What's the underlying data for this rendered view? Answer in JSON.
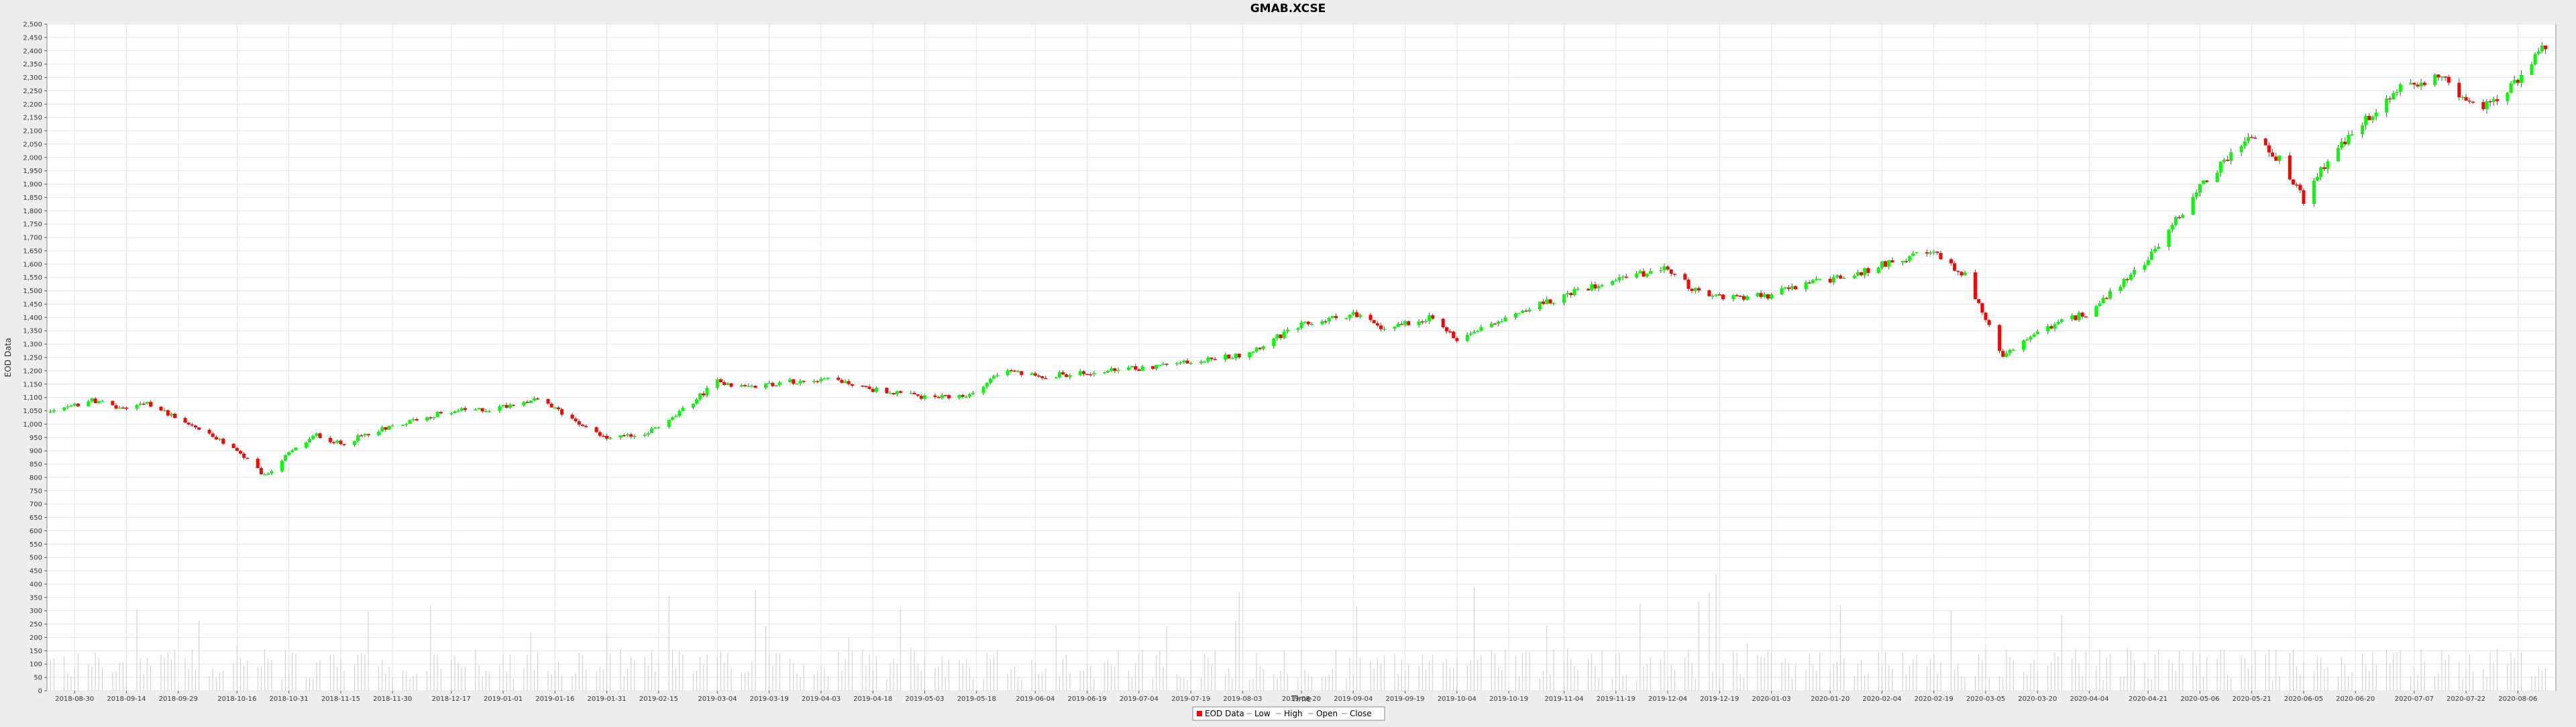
{
  "chart_data": {
    "type": "candlestick",
    "title": "GMAB.XCSE",
    "xlabel": "Time",
    "ylabel": "EOD Data",
    "ylim": [
      0,
      2500
    ],
    "y_ticks": [
      0,
      50,
      100,
      150,
      200,
      250,
      300,
      350,
      400,
      450,
      500,
      550,
      600,
      650,
      700,
      750,
      800,
      850,
      900,
      950,
      1000,
      1050,
      1100,
      1150,
      1200,
      1250,
      1300,
      1350,
      1400,
      1450,
      1500,
      1550,
      1600,
      1650,
      1700,
      1750,
      1800,
      1850,
      1900,
      1950,
      2000,
      2050,
      2100,
      2150,
      2200,
      2250,
      2300,
      2350,
      2400,
      2450,
      2500
    ],
    "y_tick_labels": [
      "0",
      "50",
      "100",
      "150",
      "200",
      "250",
      "300",
      "350",
      "400",
      "450",
      "500",
      "550",
      "600",
      "650",
      "700",
      "750",
      "800",
      "850",
      "900",
      "950",
      "1,000",
      "1,050",
      "1,100",
      "1,150",
      "1,200",
      "1,250",
      "1,300",
      "1,350",
      "1,400",
      "1,450",
      "1,500",
      "1,550",
      "1,600",
      "1,650",
      "1,700",
      "1,750",
      "1,800",
      "1,850",
      "1,900",
      "1,950",
      "2,000",
      "2,050",
      "2,100",
      "2,150",
      "2,200",
      "2,250",
      "2,300",
      "2,350",
      "2,400",
      "2,450",
      "2,500"
    ],
    "x_tick_labels": [
      "2018-08-30",
      "2018-09-14",
      "2018-09-29",
      "2018-10-16",
      "2018-10-31",
      "2018-11-15",
      "2018-11-30",
      "2018-12-17",
      "2019-01-01",
      "2019-01-16",
      "2019-01-31",
      "2019-02-15",
      "2019-03-04",
      "2019-03-19",
      "2019-04-03",
      "2019-04-18",
      "2019-05-03",
      "2019-05-18",
      "2019-06-04",
      "2019-06-19",
      "2019-07-04",
      "2019-07-19",
      "2019-08-03",
      "2019-08-20",
      "2019-09-04",
      "2019-09-19",
      "2019-10-04",
      "2019-10-19",
      "2019-11-04",
      "2019-11-19",
      "2019-12-04",
      "2019-12-19",
      "2020-01-03",
      "2020-01-20",
      "2020-02-04",
      "2020-02-19",
      "2020-03-05",
      "2020-03-20",
      "2020-04-04",
      "2020-04-21",
      "2020-05-06",
      "2020-05-21",
      "2020-06-05",
      "2020-06-20",
      "2020-07-07",
      "2020-07-22",
      "2020-08-06"
    ],
    "grid": true,
    "legend_position": "bottom-center",
    "legend": [
      "EOD Data",
      "Low",
      "High",
      "Open",
      "Close"
    ],
    "colors": {
      "up": "#00ff00",
      "down": "#ff0000",
      "wick": "#555555",
      "volume": "#cccccc",
      "grid": "#e4e4e4"
    },
    "close_series": [
      [
        "2018-08-24",
        1045
      ],
      [
        "2018-09-04",
        1090
      ],
      [
        "2018-09-12",
        1060
      ],
      [
        "2018-09-20",
        1075
      ],
      [
        "2018-09-28",
        1030
      ],
      [
        "2018-10-08",
        960
      ],
      [
        "2018-10-16",
        900
      ],
      [
        "2018-10-24",
        805
      ],
      [
        "2018-10-31",
        890
      ],
      [
        "2018-11-08",
        960
      ],
      [
        "2018-11-15",
        925
      ],
      [
        "2018-11-26",
        980
      ],
      [
        "2018-12-06",
        1015
      ],
      [
        "2018-12-17",
        1050
      ],
      [
        "2018-12-28",
        1055
      ],
      [
        "2019-01-10",
        1095
      ],
      [
        "2019-01-20",
        1030
      ],
      [
        "2019-01-31",
        945
      ],
      [
        "2019-02-10",
        960
      ],
      [
        "2019-02-18",
        1010
      ],
      [
        "2019-03-04",
        1160
      ],
      [
        "2019-03-12",
        1140
      ],
      [
        "2019-03-25",
        1160
      ],
      [
        "2019-04-05",
        1175
      ],
      [
        "2019-04-18",
        1130
      ],
      [
        "2019-05-03",
        1100
      ],
      [
        "2019-05-15",
        1100
      ],
      [
        "2019-05-25",
        1200
      ],
      [
        "2019-06-04",
        1180
      ],
      [
        "2019-06-19",
        1190
      ],
      [
        "2019-07-04",
        1210
      ],
      [
        "2019-07-19",
        1235
      ],
      [
        "2019-08-03",
        1260
      ],
      [
        "2019-08-20",
        1370
      ],
      [
        "2019-09-04",
        1415
      ],
      [
        "2019-09-12",
        1360
      ],
      [
        "2019-09-26",
        1400
      ],
      [
        "2019-10-04",
        1320
      ],
      [
        "2019-10-19",
        1410
      ],
      [
        "2019-11-04",
        1480
      ],
      [
        "2019-11-19",
        1550
      ],
      [
        "2019-12-04",
        1580
      ],
      [
        "2019-12-14",
        1480
      ],
      [
        "2020-01-01",
        1480
      ],
      [
        "2020-01-14",
        1530
      ],
      [
        "2020-01-28",
        1560
      ],
      [
        "2020-02-08",
        1620
      ],
      [
        "2020-02-19",
        1640
      ],
      [
        "2020-02-28",
        1560
      ],
      [
        "2020-03-10",
        1250
      ],
      [
        "2020-03-20",
        1350
      ],
      [
        "2020-04-04",
        1420
      ],
      [
        "2020-04-21",
        1620
      ],
      [
        "2020-05-06",
        1890
      ],
      [
        "2020-05-14",
        2000
      ],
      [
        "2020-05-21",
        2080
      ],
      [
        "2020-05-29",
        1990
      ],
      [
        "2020-06-05",
        1840
      ],
      [
        "2020-06-12",
        1990
      ],
      [
        "2020-06-20",
        2100
      ],
      [
        "2020-07-02",
        2250
      ],
      [
        "2020-07-14",
        2310
      ],
      [
        "2020-07-25",
        2180
      ],
      [
        "2020-08-06",
        2280
      ],
      [
        "2020-08-12",
        2400
      ]
    ]
  }
}
